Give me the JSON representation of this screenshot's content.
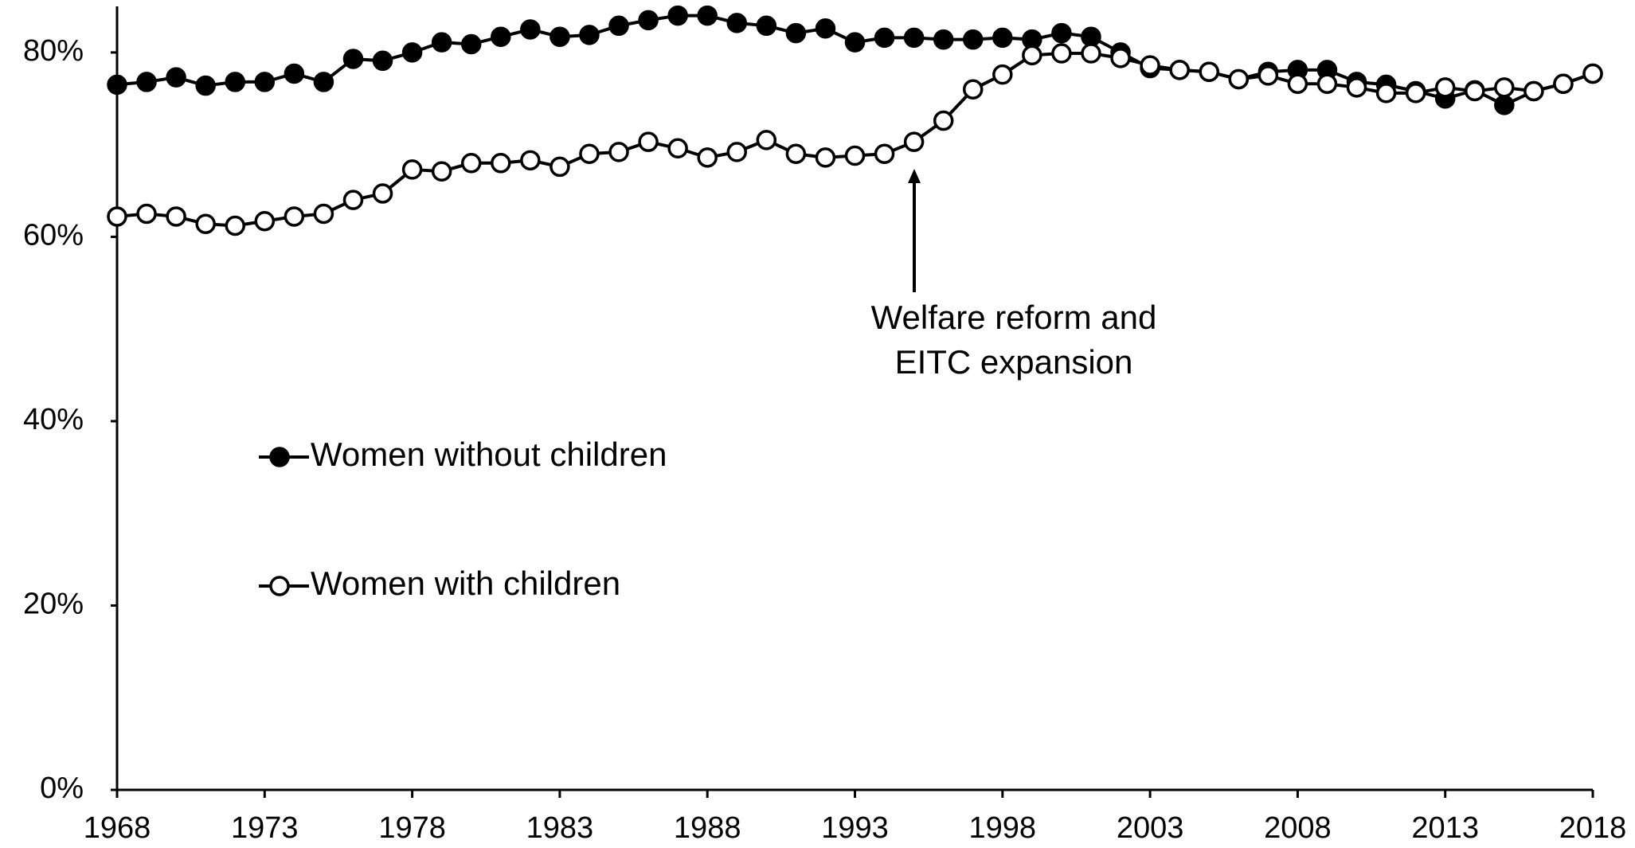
{
  "chart_data": {
    "type": "line",
    "x": [
      1968,
      1969,
      1970,
      1971,
      1972,
      1973,
      1974,
      1975,
      1976,
      1977,
      1978,
      1979,
      1980,
      1981,
      1982,
      1983,
      1984,
      1985,
      1986,
      1987,
      1988,
      1989,
      1990,
      1991,
      1992,
      1993,
      1994,
      1995,
      1996,
      1997,
      1998,
      1999,
      2000,
      2001,
      2002,
      2003,
      2004,
      2005,
      2006,
      2007,
      2008,
      2009,
      2010,
      2011,
      2012,
      2013,
      2014,
      2015,
      2016,
      2017,
      2018
    ],
    "series": [
      {
        "name": "Women without children",
        "color": "#000000",
        "marker": "filled",
        "values": [
          76.5,
          76.8,
          77.3,
          76.4,
          76.8,
          76.8,
          77.7,
          76.8,
          79.3,
          79.1,
          80.0,
          81.1,
          80.9,
          81.7,
          82.5,
          81.7,
          81.9,
          82.9,
          83.5,
          84.0,
          84.0,
          83.2,
          82.9,
          82.1,
          82.6,
          81.1,
          81.6,
          81.6,
          81.4,
          81.4,
          81.6,
          81.4,
          82.1,
          81.7,
          80.0,
          78.3,
          78.1,
          77.9,
          77.1,
          77.9,
          78.1,
          78.1,
          76.8,
          76.5,
          75.8,
          75.0,
          75.9,
          74.3,
          75.8,
          76.6,
          77.7
        ]
      },
      {
        "name": "Women with children",
        "color": "#000000",
        "marker": "hollow",
        "values": [
          62.2,
          62.5,
          62.2,
          61.4,
          61.2,
          61.7,
          62.2,
          62.5,
          64.0,
          64.7,
          67.3,
          67.1,
          68.0,
          68.0,
          68.3,
          67.6,
          69.0,
          69.2,
          70.3,
          69.6,
          68.6,
          69.2,
          70.5,
          69.0,
          68.6,
          68.8,
          69.0,
          70.3,
          72.6,
          76.0,
          77.6,
          79.7,
          79.9,
          79.9,
          79.4,
          78.6,
          78.1,
          77.9,
          77.1,
          77.5,
          76.6,
          76.6,
          76.2,
          75.6,
          75.6,
          76.2,
          75.8,
          76.2,
          75.8,
          76.6,
          77.7
        ]
      }
    ],
    "xlim": [
      1968,
      2018
    ],
    "xticks": [
      1968,
      1973,
      1978,
      1983,
      1988,
      1993,
      1998,
      2003,
      2008,
      2013,
      2018
    ],
    "ylim": [
      0,
      85
    ],
    "yticks": [
      {
        "value": 0,
        "label": "0%"
      },
      {
        "value": 20,
        "label": "20%"
      },
      {
        "value": 40,
        "label": "40%"
      },
      {
        "value": 60,
        "label": "60%"
      },
      {
        "value": 80,
        "label": "80%"
      }
    ],
    "grid": false,
    "annotation": [
      "Welfare reform and",
      "EITC expansion"
    ]
  }
}
